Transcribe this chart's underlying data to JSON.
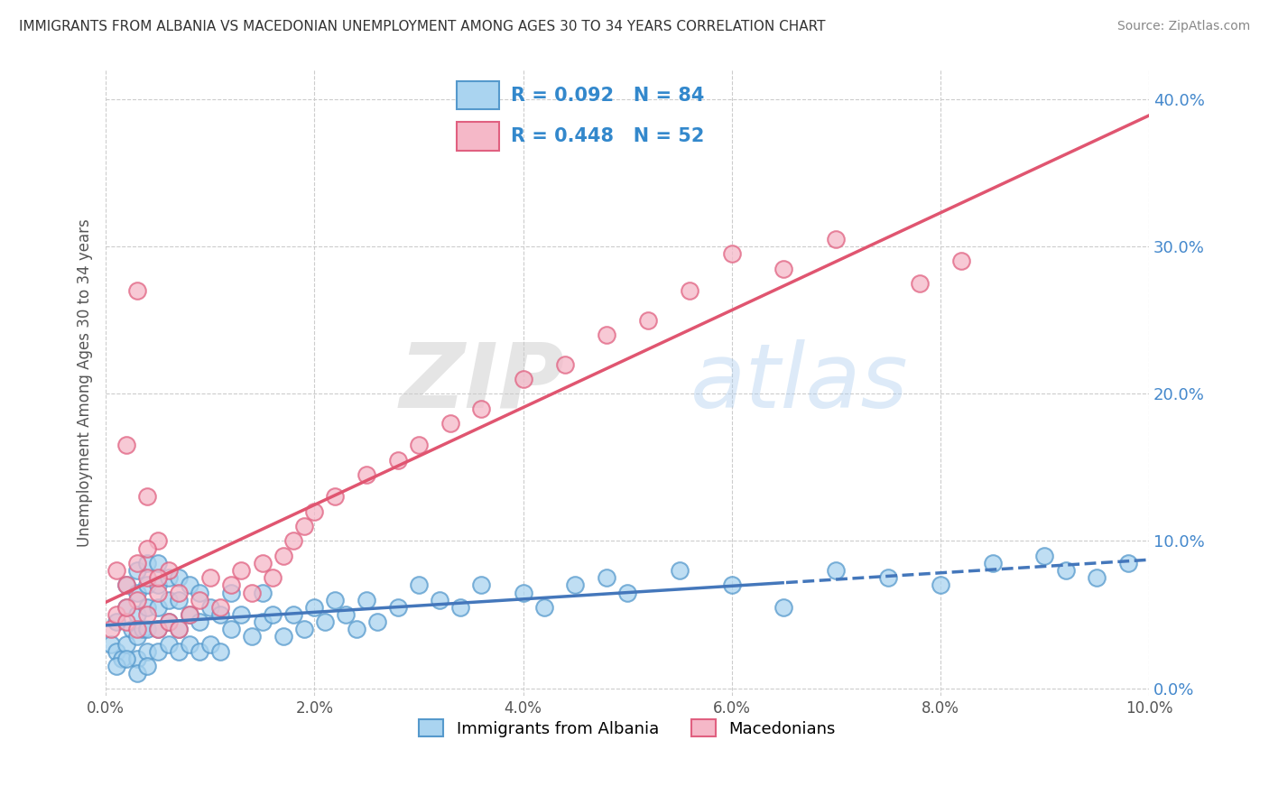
{
  "title": "IMMIGRANTS FROM ALBANIA VS MACEDONIAN UNEMPLOYMENT AMONG AGES 30 TO 34 YEARS CORRELATION CHART",
  "source": "Source: ZipAtlas.com",
  "ylabel": "Unemployment Among Ages 30 to 34 years",
  "watermark_zip": "ZIP",
  "watermark_atlas": "atlas",
  "R_albania": 0.092,
  "N_albania": 84,
  "R_macedonian": 0.448,
  "N_macedonian": 52,
  "xlim": [
    0.0,
    0.1
  ],
  "ylim": [
    -0.005,
    0.42
  ],
  "xticks": [
    0.0,
    0.02,
    0.04,
    0.06,
    0.08,
    0.1
  ],
  "yticks": [
    0.0,
    0.1,
    0.2,
    0.3,
    0.4
  ],
  "color_albania": "#aad4f0",
  "color_macedonian": "#f5b8c8",
  "edge_albania": "#5599cc",
  "edge_macedonian": "#e06080",
  "trend_albania": "#4477bb",
  "trend_macedonian": "#e05570",
  "background_color": "#FFFFFF",
  "grid_color": "#CCCCCC",
  "albania_x": [
    0.0005,
    0.001,
    0.001,
    0.0015,
    0.002,
    0.002,
    0.002,
    0.0025,
    0.003,
    0.003,
    0.003,
    0.003,
    0.003,
    0.0035,
    0.004,
    0.004,
    0.004,
    0.004,
    0.004,
    0.005,
    0.005,
    0.005,
    0.005,
    0.005,
    0.006,
    0.006,
    0.006,
    0.006,
    0.007,
    0.007,
    0.007,
    0.007,
    0.008,
    0.008,
    0.008,
    0.009,
    0.009,
    0.009,
    0.01,
    0.01,
    0.011,
    0.011,
    0.012,
    0.012,
    0.013,
    0.014,
    0.015,
    0.015,
    0.016,
    0.017,
    0.018,
    0.019,
    0.02,
    0.021,
    0.022,
    0.023,
    0.024,
    0.025,
    0.026,
    0.028,
    0.03,
    0.032,
    0.034,
    0.036,
    0.04,
    0.042,
    0.045,
    0.048,
    0.05,
    0.055,
    0.06,
    0.065,
    0.07,
    0.075,
    0.08,
    0.085,
    0.09,
    0.092,
    0.095,
    0.098,
    0.001,
    0.002,
    0.003,
    0.004
  ],
  "albania_y": [
    0.03,
    0.025,
    0.045,
    0.02,
    0.03,
    0.055,
    0.07,
    0.04,
    0.02,
    0.035,
    0.05,
    0.065,
    0.08,
    0.04,
    0.025,
    0.04,
    0.055,
    0.07,
    0.085,
    0.025,
    0.04,
    0.055,
    0.07,
    0.085,
    0.03,
    0.045,
    0.06,
    0.075,
    0.025,
    0.04,
    0.06,
    0.075,
    0.03,
    0.05,
    0.07,
    0.025,
    0.045,
    0.065,
    0.03,
    0.055,
    0.025,
    0.05,
    0.04,
    0.065,
    0.05,
    0.035,
    0.045,
    0.065,
    0.05,
    0.035,
    0.05,
    0.04,
    0.055,
    0.045,
    0.06,
    0.05,
    0.04,
    0.06,
    0.045,
    0.055,
    0.07,
    0.06,
    0.055,
    0.07,
    0.065,
    0.055,
    0.07,
    0.075,
    0.065,
    0.08,
    0.07,
    0.055,
    0.08,
    0.075,
    0.07,
    0.085,
    0.09,
    0.08,
    0.075,
    0.085,
    0.015,
    0.02,
    0.01,
    0.015
  ],
  "macedonian_x": [
    0.0005,
    0.001,
    0.001,
    0.002,
    0.002,
    0.002,
    0.003,
    0.003,
    0.003,
    0.004,
    0.004,
    0.004,
    0.005,
    0.005,
    0.005,
    0.006,
    0.006,
    0.007,
    0.007,
    0.008,
    0.009,
    0.01,
    0.011,
    0.012,
    0.013,
    0.014,
    0.015,
    0.016,
    0.017,
    0.018,
    0.019,
    0.02,
    0.022,
    0.025,
    0.028,
    0.03,
    0.033,
    0.036,
    0.04,
    0.044,
    0.048,
    0.052,
    0.056,
    0.06,
    0.065,
    0.07,
    0.078,
    0.082,
    0.002,
    0.003,
    0.004,
    0.005
  ],
  "macedonian_y": [
    0.04,
    0.05,
    0.08,
    0.045,
    0.07,
    0.165,
    0.04,
    0.06,
    0.27,
    0.05,
    0.13,
    0.075,
    0.04,
    0.065,
    0.1,
    0.045,
    0.08,
    0.04,
    0.065,
    0.05,
    0.06,
    0.075,
    0.055,
    0.07,
    0.08,
    0.065,
    0.085,
    0.075,
    0.09,
    0.1,
    0.11,
    0.12,
    0.13,
    0.145,
    0.155,
    0.165,
    0.18,
    0.19,
    0.21,
    0.22,
    0.24,
    0.25,
    0.27,
    0.295,
    0.285,
    0.305,
    0.275,
    0.29,
    0.055,
    0.085,
    0.095,
    0.075
  ]
}
